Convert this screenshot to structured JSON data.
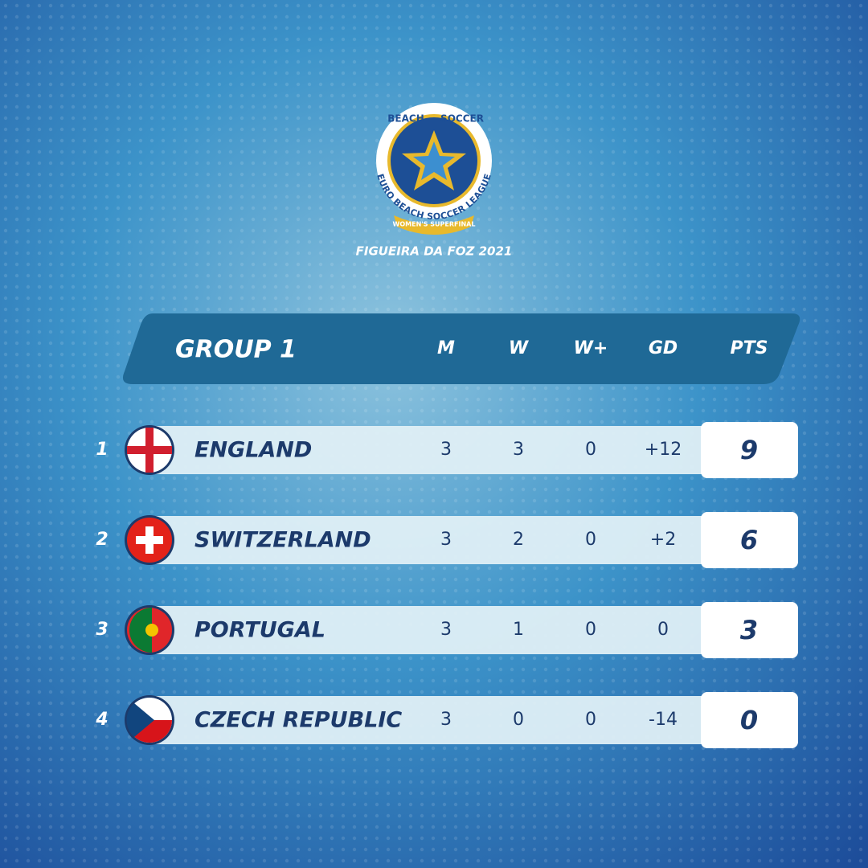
{
  "logo": {
    "top_left": "BEACH",
    "top_right": "SOCCER",
    "ring": "EURO BEACH SOCCER LEAGUE",
    "ribbon": "WOMEN'S SUPERFINAL",
    "event": "FIGUEIRA DA FOZ 2021"
  },
  "table": {
    "title": "GROUP 1",
    "columns": [
      "M",
      "W",
      "W+",
      "GD",
      "PTS"
    ],
    "rows": [
      {
        "rank": "1",
        "team": "ENGLAND",
        "cells": [
          "3",
          "3",
          "0",
          "+12",
          "9"
        ]
      },
      {
        "rank": "2",
        "team": "SWITZERLAND",
        "cells": [
          "3",
          "2",
          "0",
          "+2",
          "6"
        ]
      },
      {
        "rank": "3",
        "team": "PORTUGAL",
        "cells": [
          "3",
          "1",
          "0",
          "0",
          "3"
        ]
      },
      {
        "rank": "4",
        "team": "CZECH REPUBLIC",
        "cells": [
          "3",
          "0",
          "0",
          "-14",
          "0"
        ]
      }
    ]
  }
}
